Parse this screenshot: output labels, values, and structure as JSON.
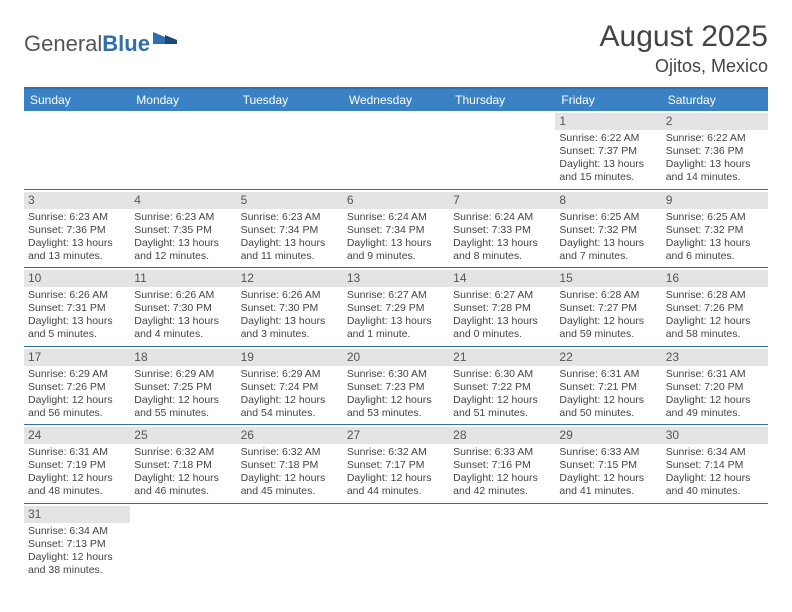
{
  "logo": {
    "part1": "General",
    "part2": "Blue"
  },
  "header": {
    "title": "August 2025",
    "location": "Ojitos, Mexico"
  },
  "colors": {
    "header_bar": "#3b82c4",
    "rule": "#2f6fab",
    "daynum_bg": "#e4e4e4",
    "text": "#444444",
    "logo_accent": "#2f6fab"
  },
  "weekdays": [
    "Sunday",
    "Monday",
    "Tuesday",
    "Wednesday",
    "Thursday",
    "Friday",
    "Saturday"
  ],
  "weeks": [
    [
      null,
      null,
      null,
      null,
      null,
      {
        "n": "1",
        "sunrise": "Sunrise: 6:22 AM",
        "sunset": "Sunset: 7:37 PM",
        "daylight": "Daylight: 13 hours and 15 minutes."
      },
      {
        "n": "2",
        "sunrise": "Sunrise: 6:22 AM",
        "sunset": "Sunset: 7:36 PM",
        "daylight": "Daylight: 13 hours and 14 minutes."
      }
    ],
    [
      {
        "n": "3",
        "sunrise": "Sunrise: 6:23 AM",
        "sunset": "Sunset: 7:36 PM",
        "daylight": "Daylight: 13 hours and 13 minutes."
      },
      {
        "n": "4",
        "sunrise": "Sunrise: 6:23 AM",
        "sunset": "Sunset: 7:35 PM",
        "daylight": "Daylight: 13 hours and 12 minutes."
      },
      {
        "n": "5",
        "sunrise": "Sunrise: 6:23 AM",
        "sunset": "Sunset: 7:34 PM",
        "daylight": "Daylight: 13 hours and 11 minutes."
      },
      {
        "n": "6",
        "sunrise": "Sunrise: 6:24 AM",
        "sunset": "Sunset: 7:34 PM",
        "daylight": "Daylight: 13 hours and 9 minutes."
      },
      {
        "n": "7",
        "sunrise": "Sunrise: 6:24 AM",
        "sunset": "Sunset: 7:33 PM",
        "daylight": "Daylight: 13 hours and 8 minutes."
      },
      {
        "n": "8",
        "sunrise": "Sunrise: 6:25 AM",
        "sunset": "Sunset: 7:32 PM",
        "daylight": "Daylight: 13 hours and 7 minutes."
      },
      {
        "n": "9",
        "sunrise": "Sunrise: 6:25 AM",
        "sunset": "Sunset: 7:32 PM",
        "daylight": "Daylight: 13 hours and 6 minutes."
      }
    ],
    [
      {
        "n": "10",
        "sunrise": "Sunrise: 6:26 AM",
        "sunset": "Sunset: 7:31 PM",
        "daylight": "Daylight: 13 hours and 5 minutes."
      },
      {
        "n": "11",
        "sunrise": "Sunrise: 6:26 AM",
        "sunset": "Sunset: 7:30 PM",
        "daylight": "Daylight: 13 hours and 4 minutes."
      },
      {
        "n": "12",
        "sunrise": "Sunrise: 6:26 AM",
        "sunset": "Sunset: 7:30 PM",
        "daylight": "Daylight: 13 hours and 3 minutes."
      },
      {
        "n": "13",
        "sunrise": "Sunrise: 6:27 AM",
        "sunset": "Sunset: 7:29 PM",
        "daylight": "Daylight: 13 hours and 1 minute."
      },
      {
        "n": "14",
        "sunrise": "Sunrise: 6:27 AM",
        "sunset": "Sunset: 7:28 PM",
        "daylight": "Daylight: 13 hours and 0 minutes."
      },
      {
        "n": "15",
        "sunrise": "Sunrise: 6:28 AM",
        "sunset": "Sunset: 7:27 PM",
        "daylight": "Daylight: 12 hours and 59 minutes."
      },
      {
        "n": "16",
        "sunrise": "Sunrise: 6:28 AM",
        "sunset": "Sunset: 7:26 PM",
        "daylight": "Daylight: 12 hours and 58 minutes."
      }
    ],
    [
      {
        "n": "17",
        "sunrise": "Sunrise: 6:29 AM",
        "sunset": "Sunset: 7:26 PM",
        "daylight": "Daylight: 12 hours and 56 minutes."
      },
      {
        "n": "18",
        "sunrise": "Sunrise: 6:29 AM",
        "sunset": "Sunset: 7:25 PM",
        "daylight": "Daylight: 12 hours and 55 minutes."
      },
      {
        "n": "19",
        "sunrise": "Sunrise: 6:29 AM",
        "sunset": "Sunset: 7:24 PM",
        "daylight": "Daylight: 12 hours and 54 minutes."
      },
      {
        "n": "20",
        "sunrise": "Sunrise: 6:30 AM",
        "sunset": "Sunset: 7:23 PM",
        "daylight": "Daylight: 12 hours and 53 minutes."
      },
      {
        "n": "21",
        "sunrise": "Sunrise: 6:30 AM",
        "sunset": "Sunset: 7:22 PM",
        "daylight": "Daylight: 12 hours and 51 minutes."
      },
      {
        "n": "22",
        "sunrise": "Sunrise: 6:31 AM",
        "sunset": "Sunset: 7:21 PM",
        "daylight": "Daylight: 12 hours and 50 minutes."
      },
      {
        "n": "23",
        "sunrise": "Sunrise: 6:31 AM",
        "sunset": "Sunset: 7:20 PM",
        "daylight": "Daylight: 12 hours and 49 minutes."
      }
    ],
    [
      {
        "n": "24",
        "sunrise": "Sunrise: 6:31 AM",
        "sunset": "Sunset: 7:19 PM",
        "daylight": "Daylight: 12 hours and 48 minutes."
      },
      {
        "n": "25",
        "sunrise": "Sunrise: 6:32 AM",
        "sunset": "Sunset: 7:18 PM",
        "daylight": "Daylight: 12 hours and 46 minutes."
      },
      {
        "n": "26",
        "sunrise": "Sunrise: 6:32 AM",
        "sunset": "Sunset: 7:18 PM",
        "daylight": "Daylight: 12 hours and 45 minutes."
      },
      {
        "n": "27",
        "sunrise": "Sunrise: 6:32 AM",
        "sunset": "Sunset: 7:17 PM",
        "daylight": "Daylight: 12 hours and 44 minutes."
      },
      {
        "n": "28",
        "sunrise": "Sunrise: 6:33 AM",
        "sunset": "Sunset: 7:16 PM",
        "daylight": "Daylight: 12 hours and 42 minutes."
      },
      {
        "n": "29",
        "sunrise": "Sunrise: 6:33 AM",
        "sunset": "Sunset: 7:15 PM",
        "daylight": "Daylight: 12 hours and 41 minutes."
      },
      {
        "n": "30",
        "sunrise": "Sunrise: 6:34 AM",
        "sunset": "Sunset: 7:14 PM",
        "daylight": "Daylight: 12 hours and 40 minutes."
      }
    ],
    [
      {
        "n": "31",
        "sunrise": "Sunrise: 6:34 AM",
        "sunset": "Sunset: 7:13 PM",
        "daylight": "Daylight: 12 hours and 38 minutes."
      },
      null,
      null,
      null,
      null,
      null,
      null
    ]
  ]
}
